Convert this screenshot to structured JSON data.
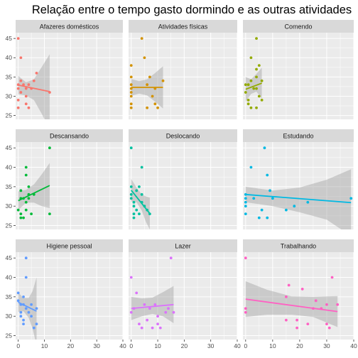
{
  "chart_data": {
    "type": "scatter",
    "title": "Relação entre o tempo gasto dormindo e as outras atividades",
    "facet_layout": "3x3",
    "shared_axes": true,
    "xlim": [
      -1,
      40
    ],
    "ylim": [
      24,
      46.5
    ],
    "x_ticks": [
      0,
      10,
      20,
      30,
      40
    ],
    "y_ticks": [
      25,
      30,
      35,
      40,
      45
    ],
    "grid": true,
    "legend": "none",
    "trend": "linear regression with confidence band",
    "panels": [
      {
        "name": "Afazeres domésticos",
        "color": "#F8766D",
        "points": [
          [
            0,
            45
          ],
          [
            1,
            40
          ],
          [
            1,
            34
          ],
          [
            0,
            33
          ],
          [
            0,
            32
          ],
          [
            1,
            31
          ],
          [
            0,
            29
          ],
          [
            0,
            27
          ],
          [
            2,
            33
          ],
          [
            3,
            32
          ],
          [
            3,
            30
          ],
          [
            3,
            28
          ],
          [
            4,
            33
          ],
          [
            4,
            27
          ],
          [
            5,
            32
          ],
          [
            6,
            34
          ],
          [
            7,
            36
          ],
          [
            12,
            31
          ]
        ],
        "fit": {
          "x": [
            0,
            12
          ],
          "y": [
            32.9,
            31.2
          ]
        },
        "band": {
          "x": [
            0,
            3,
            6,
            9,
            12
          ],
          "upper": [
            35.3,
            33.6,
            34.4,
            37.6,
            40.9
          ],
          "lower": [
            30.5,
            30.2,
            29.0,
            25.4,
            21.5
          ]
        }
      },
      {
        "name": "Atividades físicas",
        "color": "#D39200",
        "points": [
          [
            0,
            38
          ],
          [
            0,
            35
          ],
          [
            0,
            33
          ],
          [
            0,
            32
          ],
          [
            0,
            31
          ],
          [
            0,
            30
          ],
          [
            0,
            28
          ],
          [
            0,
            27
          ],
          [
            4,
            45
          ],
          [
            5,
            40
          ],
          [
            6,
            33
          ],
          [
            6,
            27
          ],
          [
            7,
            35
          ],
          [
            8,
            30
          ],
          [
            9,
            32
          ],
          [
            9,
            28
          ],
          [
            10,
            27
          ],
          [
            12,
            34
          ]
        ],
        "fit": {
          "x": [
            0,
            12
          ],
          "y": [
            32.3,
            32.3
          ]
        },
        "band": {
          "x": [
            0,
            3,
            6,
            9,
            12
          ],
          "upper": [
            34.5,
            33.9,
            34.4,
            36.0,
            37.8
          ],
          "lower": [
            30.1,
            30.7,
            30.2,
            28.6,
            26.8
          ]
        }
      },
      {
        "name": "Comendo",
        "color": "#93AA00",
        "points": [
          [
            0,
            33
          ],
          [
            0,
            31
          ],
          [
            1,
            33
          ],
          [
            1,
            29
          ],
          [
            1,
            28
          ],
          [
            2,
            34
          ],
          [
            2,
            27
          ],
          [
            2,
            40
          ],
          [
            3,
            32
          ],
          [
            4,
            45
          ],
          [
            4,
            37
          ],
          [
            4,
            35
          ],
          [
            4,
            32
          ],
          [
            4,
            27
          ],
          [
            5,
            38
          ],
          [
            5,
            30
          ],
          [
            6,
            34
          ],
          [
            6,
            29
          ]
        ],
        "fit": {
          "x": [
            0,
            6
          ],
          "y": [
            31.8,
            33.4
          ]
        },
        "band": {
          "x": [
            0,
            2,
            4,
            6
          ],
          "upper": [
            35.0,
            34.4,
            35.8,
            37.4
          ],
          "lower": [
            28.6,
            30.6,
            31.2,
            29.4
          ]
        }
      },
      {
        "name": "Descansando",
        "color": "#00BA38",
        "points": [
          [
            0,
            29
          ],
          [
            1,
            34
          ],
          [
            1,
            32
          ],
          [
            1,
            28
          ],
          [
            1,
            27
          ],
          [
            2,
            32
          ],
          [
            2,
            27
          ],
          [
            3,
            31
          ],
          [
            3,
            29
          ],
          [
            3,
            38
          ],
          [
            3,
            40
          ],
          [
            4,
            32
          ],
          [
            4,
            35
          ],
          [
            4,
            33
          ],
          [
            5,
            28
          ],
          [
            6,
            33
          ],
          [
            12,
            28
          ],
          [
            12,
            45
          ]
        ],
        "fit": {
          "x": [
            0,
            12
          ],
          "y": [
            31.4,
            35.3
          ]
        },
        "band": {
          "x": [
            0,
            3,
            6,
            9,
            12
          ],
          "upper": [
            33.8,
            34.2,
            35.6,
            38.2,
            41.1
          ],
          "lower": [
            29.0,
            30.9,
            30.9,
            30.0,
            29.5
          ]
        }
      },
      {
        "name": "Deslocando",
        "color": "#00C19F",
        "points": [
          [
            0,
            45
          ],
          [
            0,
            35
          ],
          [
            0,
            33
          ],
          [
            0,
            32
          ],
          [
            1,
            31
          ],
          [
            1,
            30
          ],
          [
            1,
            28
          ],
          [
            1,
            27
          ],
          [
            2,
            34
          ],
          [
            2,
            29
          ],
          [
            3,
            35
          ],
          [
            3,
            28
          ],
          [
            4,
            33
          ],
          [
            4,
            31
          ],
          [
            4,
            40
          ],
          [
            5,
            30
          ],
          [
            6,
            29
          ],
          [
            7,
            28
          ]
        ],
        "fit": {
          "x": [
            0,
            7
          ],
          "y": [
            34.1,
            28.1
          ]
        },
        "band": {
          "x": [
            0,
            2,
            4,
            5.5,
            7
          ],
          "upper": [
            37.0,
            34.8,
            33.0,
            32.5,
            32.2
          ],
          "lower": [
            31.2,
            31.0,
            28.8,
            26.0,
            24.0
          ]
        }
      },
      {
        "name": "Estudando",
        "color": "#00B9E3",
        "points": [
          [
            0,
            33
          ],
          [
            0,
            32
          ],
          [
            0,
            31
          ],
          [
            0,
            30
          ],
          [
            0,
            28
          ],
          [
            2,
            40
          ],
          [
            3,
            32
          ],
          [
            5,
            27
          ],
          [
            6,
            29
          ],
          [
            7,
            45
          ],
          [
            8,
            27
          ],
          [
            8,
            38
          ],
          [
            9,
            34
          ],
          [
            10,
            32
          ],
          [
            15,
            29
          ],
          [
            18,
            30
          ],
          [
            23,
            31
          ],
          [
            39,
            32
          ]
        ],
        "fit": {
          "x": [
            0,
            39
          ],
          "y": [
            33.0,
            30.9
          ]
        },
        "band": {
          "x": [
            0,
            10,
            20,
            30,
            39
          ],
          "upper": [
            35.0,
            34.0,
            34.8,
            36.8,
            39.5
          ],
          "lower": [
            31.0,
            30.0,
            28.4,
            26.5,
            22.3
          ]
        }
      },
      {
        "name": "Higiene pessoal",
        "color": "#619CFF",
        "points": [
          [
            0,
            36
          ],
          [
            0,
            34
          ],
          [
            1,
            33
          ],
          [
            1,
            31
          ],
          [
            1,
            30
          ],
          [
            2,
            35
          ],
          [
            2,
            33
          ],
          [
            2,
            29
          ],
          [
            2,
            28
          ],
          [
            3,
            45
          ],
          [
            3,
            40
          ],
          [
            3,
            32
          ],
          [
            4,
            31
          ],
          [
            5,
            33
          ],
          [
            5,
            30
          ],
          [
            6,
            27
          ],
          [
            7,
            28
          ],
          [
            7,
            32
          ]
        ],
        "fit": {
          "x": [
            0,
            7
          ],
          "y": [
            33.6,
            31.3
          ]
        },
        "band": {
          "x": [
            0,
            2,
            4,
            5.5,
            7
          ],
          "upper": [
            36.1,
            34.7,
            34.7,
            36.5,
            40.0
          ],
          "lower": [
            31.1,
            31.3,
            29.6,
            26.8,
            22.5
          ]
        }
      },
      {
        "name": "Lazer",
        "color": "#DB72FB",
        "points": [
          [
            0,
            40
          ],
          [
            0,
            31
          ],
          [
            1,
            32
          ],
          [
            2,
            36
          ],
          [
            3,
            28
          ],
          [
            4,
            27
          ],
          [
            5,
            33
          ],
          [
            6,
            29
          ],
          [
            7,
            32
          ],
          [
            8,
            27
          ],
          [
            9,
            33
          ],
          [
            10,
            28
          ],
          [
            10,
            30
          ],
          [
            11,
            27
          ],
          [
            13,
            31
          ],
          [
            14,
            32
          ],
          [
            15,
            45
          ],
          [
            16,
            31
          ]
        ],
        "fit": {
          "x": [
            0,
            16
          ],
          "y": [
            32.0,
            33.0
          ]
        },
        "band": {
          "x": [
            0,
            4,
            8,
            12,
            16
          ],
          "upper": [
            35.0,
            34.6,
            34.8,
            36.2,
            37.8
          ],
          "lower": [
            29.0,
            30.0,
            30.6,
            30.0,
            28.2
          ]
        }
      },
      {
        "name": "Trabalhando",
        "color": "#FF61C3",
        "points": [
          [
            0,
            45
          ],
          [
            0,
            32
          ],
          [
            0,
            31
          ],
          [
            15,
            35
          ],
          [
            15,
            29
          ],
          [
            16,
            38
          ],
          [
            19,
            29
          ],
          [
            19,
            27
          ],
          [
            21,
            37
          ],
          [
            23,
            28
          ],
          [
            25,
            32
          ],
          [
            26,
            34
          ],
          [
            28,
            32
          ],
          [
            30,
            33
          ],
          [
            30,
            28
          ],
          [
            31,
            27
          ],
          [
            32,
            40
          ],
          [
            34,
            33
          ]
        ],
        "fit": {
          "x": [
            0,
            34
          ],
          "y": [
            34.4,
            31.2
          ]
        },
        "band": {
          "x": [
            0,
            8,
            17,
            25,
            34
          ],
          "upper": [
            39.0,
            36.8,
            35.1,
            35.0,
            35.2
          ],
          "lower": [
            29.8,
            30.4,
            30.4,
            29.8,
            27.2
          ]
        }
      }
    ]
  },
  "colors": {
    "panel_background": "#EBEBEB",
    "strip_background": "#D9D9D9",
    "grid_major": "#FFFFFF",
    "band_fill": "#999999"
  }
}
